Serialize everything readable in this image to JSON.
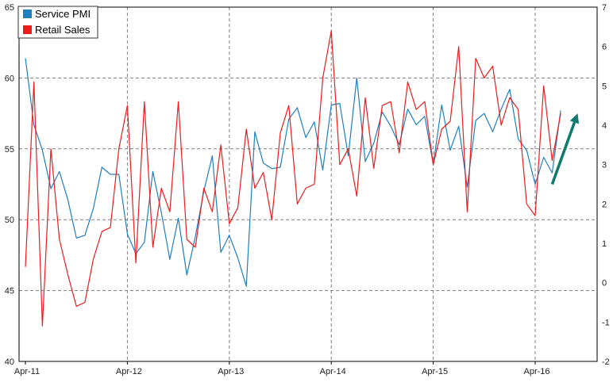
{
  "chart_data": {
    "type": "line",
    "x_start": "Apr-11",
    "x_tick_labels": [
      "Apr-11",
      "Apr-12",
      "Apr-13",
      "Apr-14",
      "Apr-15",
      "Apr-16"
    ],
    "left_axis": {
      "ylim": [
        40,
        65
      ],
      "ticks": [
        40,
        45,
        50,
        55,
        60,
        65
      ]
    },
    "right_axis": {
      "ylim": [
        -2,
        7
      ],
      "ticks": [
        -2,
        -1,
        0,
        1,
        2,
        3,
        4,
        5,
        6,
        7
      ]
    },
    "grid": "dashed, horizontal at major left-axis ticks and vertical at x tick labels",
    "legend": {
      "placement": "top-left"
    },
    "series": [
      {
        "name": "Service PMI",
        "axis": "left",
        "color": "#1f7fc0",
        "values": [
          61.4,
          56.7,
          54.9,
          52.2,
          53.4,
          51.4,
          48.7,
          48.9,
          50.8,
          53.7,
          53.2,
          53.2,
          49.0,
          47.6,
          48.4,
          53.4,
          50.5,
          47.2,
          50.1,
          46.1,
          48.8,
          52.0,
          54.5,
          47.7,
          48.9,
          47.3,
          45.3,
          56.2,
          54.0,
          53.6,
          53.7,
          57.1,
          57.9,
          55.8,
          56.9,
          53.5,
          58.1,
          58.2,
          54.5,
          60.0,
          54.1,
          55.4,
          57.6,
          56.6,
          55.3,
          57.8,
          56.7,
          57.3,
          53.9,
          58.1,
          54.9,
          56.6,
          52.3,
          57.0,
          57.5,
          56.2,
          57.8,
          59.2,
          55.7,
          54.9,
          52.5,
          54.4,
          53.3,
          57.7
        ]
      },
      {
        "name": "Retail Sales",
        "axis": "right",
        "color": "#ee1c1c",
        "values": [
          0.4,
          5.1,
          -1.1,
          3.4,
          1.1,
          0.2,
          -0.6,
          -0.5,
          0.6,
          1.3,
          1.4,
          3.4,
          4.5,
          0.5,
          4.6,
          0.9,
          2.4,
          1.8,
          4.6,
          1.1,
          0.9,
          2.4,
          1.8,
          3.5,
          1.5,
          1.9,
          3.9,
          2.4,
          2.8,
          1.6,
          3.8,
          4.5,
          2.0,
          2.4,
          2.5,
          5.2,
          6.4,
          3.0,
          3.4,
          2.2,
          4.7,
          2.9,
          4.5,
          4.6,
          3.3,
          5.1,
          4.4,
          4.6,
          3.0,
          3.9,
          4.1,
          6.0,
          1.8,
          5.7,
          5.2,
          5.5,
          4.0,
          4.7,
          4.4,
          2.0,
          1.7,
          5.0,
          3.1,
          4.3
        ]
      }
    ],
    "annotations": [
      {
        "type": "arrow",
        "color": "#0f7a6e",
        "from_x_index": 62,
        "from_y_left": 52.5,
        "to_x_index": 65,
        "to_y_left": 57.5
      }
    ]
  }
}
